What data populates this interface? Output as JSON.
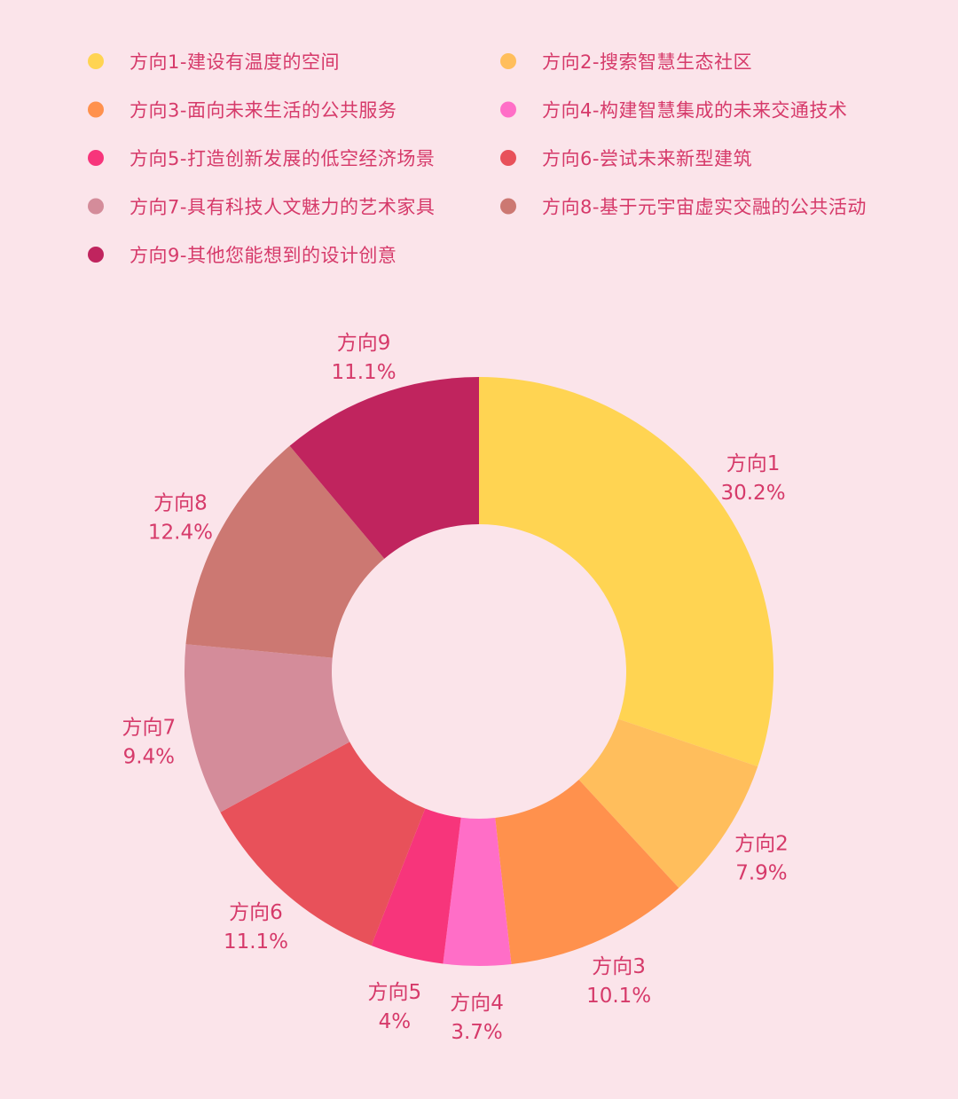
{
  "chart_data": {
    "type": "pie",
    "donut": true,
    "title": "",
    "legend_placement": "top",
    "legend": [
      "方向1-建设有温度的空间",
      "方向2-搜索智慧生态社区",
      "方向3-面向未来生活的公共服务",
      "方向4-构建智慧集成的未来交通技术",
      "方向5-打造创新发展的低空经济场景",
      "方向6-尝试未来新型建筑",
      "方向7-具有科技人文魅力的艺术家具",
      "方向8-基于元宇宙虚实交融的公共活动",
      "方向9-其他您能想到的设计创意"
    ],
    "categories": [
      "方向1",
      "方向2",
      "方向3",
      "方向4",
      "方向5",
      "方向6",
      "方向7",
      "方向8",
      "方向9"
    ],
    "values": [
      30.2,
      7.9,
      10.1,
      3.7,
      4,
      11.1,
      9.4,
      12.4,
      11.1
    ],
    "value_labels": [
      "30.2%",
      "7.9%",
      "10.1%",
      "3.7%",
      "4%",
      "11.1%",
      "9.4%",
      "12.4%",
      "11.1%"
    ],
    "colors": [
      "#ffd452",
      "#ffbe5c",
      "#ff914d",
      "#ff6ec7",
      "#f7357b",
      "#e8515a",
      "#d48c9a",
      "#cc7872",
      "#c0245e"
    ],
    "label_color": "#d63a6a",
    "background": "#fbe4ea"
  }
}
